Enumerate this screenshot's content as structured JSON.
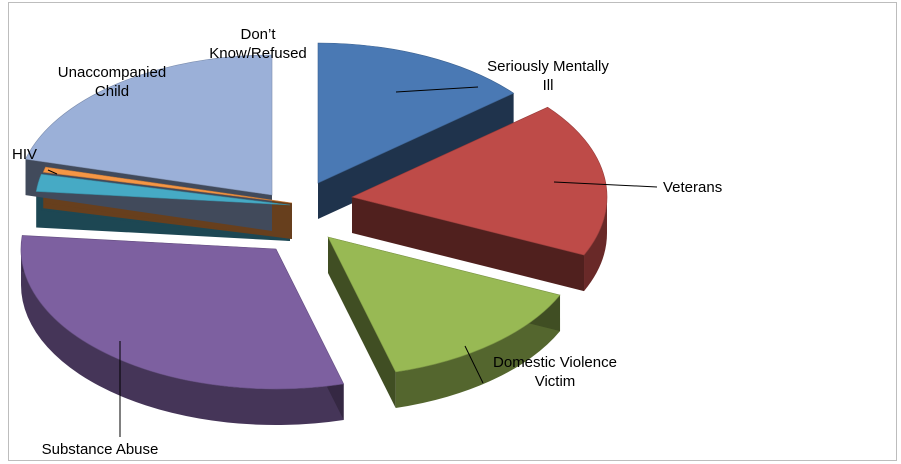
{
  "chart_data": {
    "type": "pie",
    "style": "3d-exploded",
    "title": "",
    "legend": "none (category labels with leader lines)",
    "slices": [
      {
        "name": "Seriously Mentally Ill",
        "label_lines": [
          "Seriously Mentally",
          "Ill"
        ],
        "value": 14,
        "color": "#4A79B4"
      },
      {
        "name": "Veterans",
        "label_lines": [
          "Veterans"
        ],
        "value": 18,
        "color": "#BE4B48"
      },
      {
        "name": "Domestic Violence Victim",
        "label_lines": [
          "Domestic Violence",
          "Victim"
        ],
        "value": 14,
        "color": "#98B954"
      },
      {
        "name": "Substance Abuse",
        "label_lines": [
          "Substance Abuse"
        ],
        "value": 31,
        "color": "#7D60A0"
      },
      {
        "name": "HIV",
        "label_lines": [
          "HIV"
        ],
        "value": 2,
        "color": "#46AAC5"
      },
      {
        "name": "HIV (small orange slice)",
        "label_lines": [],
        "value": 0.6,
        "color": "#F59645"
      },
      {
        "name": "Unaccompanied Child",
        "label_lines": [
          "Unaccompanied",
          "Child"
        ],
        "value": 21,
        "color": "#9BB0D8"
      },
      {
        "name": "Don’t Know/Refused",
        "label_lines": [
          "Don’t",
          "Know/Refused"
        ],
        "value": 0,
        "color": "#FFFFFF"
      }
    ]
  }
}
